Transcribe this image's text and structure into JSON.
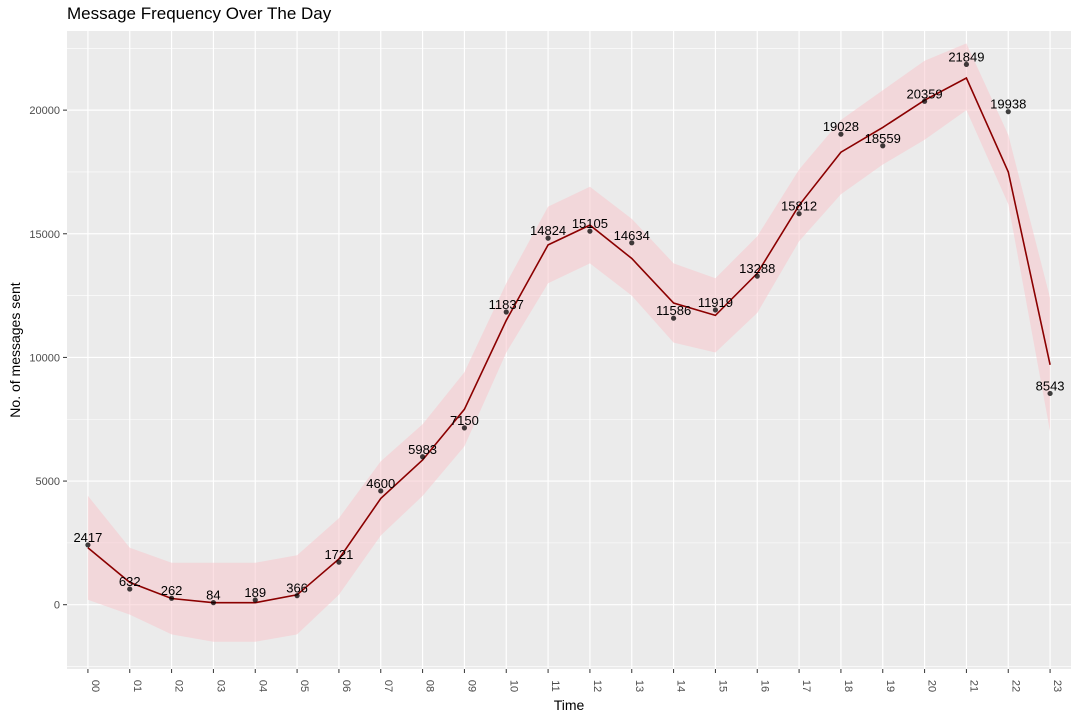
{
  "chart_data": {
    "type": "line",
    "title": "Message Frequency Over The Day",
    "xlabel": "Time",
    "ylabel": "No. of messages sent",
    "categories": [
      "00",
      "01",
      "02",
      "03",
      "04",
      "05",
      "06",
      "07",
      "08",
      "09",
      "10",
      "11",
      "12",
      "13",
      "14",
      "15",
      "16",
      "17",
      "18",
      "19",
      "20",
      "21",
      "22",
      "23"
    ],
    "series": [
      {
        "values": [
          2417,
          632,
          262,
          84,
          189,
          366,
          1721,
          4600,
          5983,
          7150,
          11837,
          14824,
          15105,
          14634,
          11586,
          11919,
          13288,
          15812,
          19028,
          18559,
          20359,
          21849,
          19938,
          8543
        ]
      }
    ],
    "smooth_line": [
      2300,
      900,
      250,
      80,
      80,
      400,
      1850,
      4300,
      5850,
      7900,
      11500,
      14550,
      15350,
      14000,
      12200,
      11700,
      13400,
      16150,
      18300,
      19300,
      20400,
      21300,
      17500,
      9700
    ],
    "band_upper": [
      4400,
      2300,
      1700,
      1700,
      1700,
      2000,
      3500,
      5800,
      7300,
      9400,
      13000,
      16100,
      16900,
      15600,
      13800,
      13200,
      14900,
      17600,
      19600,
      20800,
      22000,
      22700,
      19000,
      12400
    ],
    "band_lower": [
      200,
      -400,
      -1200,
      -1500,
      -1500,
      -1200,
      400,
      2800,
      4400,
      6400,
      10200,
      13000,
      13800,
      12500,
      10600,
      10200,
      11800,
      14700,
      16600,
      17800,
      18800,
      20000,
      16200,
      7000
    ],
    "ylim": [
      -2600,
      23200
    ],
    "y_ticks": [
      0,
      5000,
      10000,
      15000,
      20000
    ],
    "x_tick_rotation": "vertical",
    "grid": true,
    "colors": {
      "panel": "#ebebeb",
      "grid": "#ffffff",
      "line": "#8b0000",
      "band": "#f8c6cc",
      "point": "#000000"
    }
  }
}
